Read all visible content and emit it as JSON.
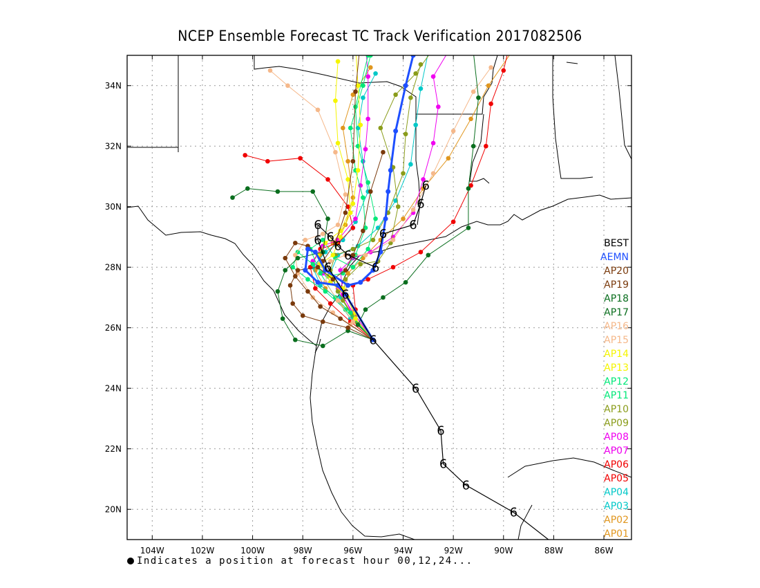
{
  "title": "NCEP Ensemble Forecast TC Track Verification 2017082506",
  "footnote": "Indicates a position at forecast hour 00,12,24...",
  "map": {
    "lon_range": [
      -105,
      -84.9
    ],
    "lat_range": [
      19,
      35
    ]
  },
  "x_ticks": [
    "104W",
    "102W",
    "100W",
    "98W",
    "96W",
    "94W",
    "92W",
    "90W",
    "88W",
    "86W"
  ],
  "y_ticks": [
    "34N",
    "32N",
    "30N",
    "28N",
    "26N",
    "24N",
    "22N",
    "20N"
  ],
  "legend": [
    {
      "label": "BEST",
      "color": "#000000"
    },
    {
      "label": "AEMN",
      "color": "#1e4fff"
    },
    {
      "label": "AP20",
      "color": "#7a3a0c"
    },
    {
      "label": "AP19",
      "color": "#7a3a0c"
    },
    {
      "label": "AP18",
      "color": "#0a6e1e"
    },
    {
      "label": "AP17",
      "color": "#0a6e1e"
    },
    {
      "label": "AP16",
      "color": "#f5b88a"
    },
    {
      "label": "AP15",
      "color": "#f5b88a"
    },
    {
      "label": "AP14",
      "color": "#f5f500"
    },
    {
      "label": "AP13",
      "color": "#f5f500"
    },
    {
      "label": "AP12",
      "color": "#00e878"
    },
    {
      "label": "AP11",
      "color": "#00e878"
    },
    {
      "label": "AP10",
      "color": "#8a9c1a"
    },
    {
      "label": "AP09",
      "color": "#8a9c1a"
    },
    {
      "label": "AP08",
      "color": "#f000f0"
    },
    {
      "label": "AP07",
      "color": "#f000f0"
    },
    {
      "label": "AP06",
      "color": "#f00000"
    },
    {
      "label": "AP05",
      "color": "#f00000"
    },
    {
      "label": "AP04",
      "color": "#00c8c8"
    },
    {
      "label": "AP03",
      "color": "#00c8c8"
    },
    {
      "label": "AP02",
      "color": "#e0961e"
    },
    {
      "label": "AP01",
      "color": "#e0961e"
    }
  ],
  "tracks": [
    {
      "name": "BEST",
      "color": "#000000",
      "points": [
        [
          -87.9,
          18.8
        ],
        [
          -89.6,
          19.9
        ],
        [
          -91.5,
          20.8
        ],
        [
          -92.4,
          21.5
        ],
        [
          -92.5,
          22.6
        ],
        [
          -93.5,
          24.0
        ],
        [
          -95.2,
          25.6
        ],
        [
          -96.3,
          27.1
        ],
        [
          -97.0,
          28.0
        ],
        [
          -97.4,
          28.9
        ],
        [
          -97.4,
          29.4
        ],
        [
          -96.9,
          29.0
        ],
        [
          -96.6,
          28.7
        ],
        [
          -96.2,
          28.4
        ],
        [
          -95.1,
          28.0
        ],
        [
          -94.8,
          29.1
        ],
        [
          -93.6,
          29.4
        ],
        [
          -93.3,
          30.1
        ],
        [
          -93.1,
          30.7
        ]
      ]
    },
    {
      "name": "AEMN",
      "color": "#1e4fff",
      "points": [
        [
          -95.2,
          25.6
        ],
        [
          -96.3,
          27.1
        ],
        [
          -96.6,
          27.4
        ],
        [
          -97.4,
          27.5
        ],
        [
          -97.9,
          27.9
        ],
        [
          -97.8,
          28.6
        ],
        [
          -97.5,
          28.5
        ],
        [
          -97.1,
          27.9
        ],
        [
          -96.2,
          27.4
        ],
        [
          -95.7,
          27.5
        ],
        [
          -95.2,
          27.9
        ],
        [
          -94.9,
          28.5
        ],
        [
          -94.7,
          29.6
        ],
        [
          -94.6,
          30.5
        ],
        [
          -94.5,
          31.2
        ],
        [
          -94.3,
          32.5
        ],
        [
          -93.9,
          34.0
        ],
        [
          -93.6,
          35.0
        ]
      ]
    },
    {
      "name": "AP20",
      "color": "#7a3a0c",
      "points": [
        [
          -95.2,
          25.6
        ],
        [
          -96.5,
          26.3
        ],
        [
          -97.3,
          26.7
        ],
        [
          -97.8,
          27.2
        ],
        [
          -98.3,
          27.7
        ],
        [
          -98.7,
          28.3
        ],
        [
          -98.3,
          28.8
        ],
        [
          -97.8,
          28.7
        ],
        [
          -97.2,
          28.2
        ],
        [
          -96.7,
          28.8
        ],
        [
          -96.3,
          29.8
        ],
        [
          -96.0,
          31.5
        ],
        [
          -95.9,
          33.8
        ],
        [
          -95.7,
          35.5
        ]
      ]
    },
    {
      "name": "AP19",
      "color": "#7a3a0c",
      "points": [
        [
          -95.2,
          25.6
        ],
        [
          -96.2,
          26.0
        ],
        [
          -97.2,
          26.2
        ],
        [
          -98.0,
          26.4
        ],
        [
          -98.4,
          26.8
        ],
        [
          -98.5,
          27.4
        ],
        [
          -98.2,
          27.9
        ],
        [
          -97.4,
          28.0
        ],
        [
          -96.8,
          27.6
        ],
        [
          -96.3,
          27.9
        ],
        [
          -96.0,
          28.4
        ],
        [
          -95.6,
          29.2
        ],
        [
          -95.3,
          30.5
        ],
        [
          -94.8,
          31.8
        ]
      ]
    },
    {
      "name": "AP18",
      "color": "#0a6e1e",
      "points": [
        [
          -95.2,
          25.6
        ],
        [
          -96.2,
          25.9
        ],
        [
          -97.2,
          25.4
        ],
        [
          -98.3,
          25.6
        ],
        [
          -98.8,
          26.3
        ],
        [
          -99.0,
          27.2
        ],
        [
          -98.7,
          27.9
        ],
        [
          -98.2,
          28.3
        ],
        [
          -97.2,
          28.5
        ],
        [
          -97.0,
          29.6
        ],
        [
          -97.6,
          30.5
        ],
        [
          -99.0,
          30.5
        ],
        [
          -100.2,
          30.6
        ],
        [
          -100.8,
          30.3
        ]
      ]
    },
    {
      "name": "AP17",
      "color": "#0a6e1e",
      "points": [
        [
          -95.2,
          25.6
        ],
        [
          -95.8,
          26.1
        ],
        [
          -95.5,
          26.6
        ],
        [
          -94.8,
          27.0
        ],
        [
          -93.9,
          27.5
        ],
        [
          -93.0,
          28.4
        ],
        [
          -91.4,
          29.3
        ],
        [
          -91.4,
          30.6
        ],
        [
          -91.2,
          32.0
        ],
        [
          -91.0,
          33.6
        ],
        [
          -91.2,
          35.1
        ]
      ]
    },
    {
      "name": "AP16",
      "color": "#f5b88a",
      "points": [
        [
          -95.2,
          25.6
        ],
        [
          -96.1,
          26.1
        ],
        [
          -96.8,
          26.5
        ],
        [
          -97.6,
          27.0
        ],
        [
          -98.2,
          27.8
        ],
        [
          -98.3,
          28.4
        ],
        [
          -97.9,
          28.9
        ],
        [
          -97.2,
          29.1
        ],
        [
          -96.6,
          29.4
        ],
        [
          -96.3,
          30.4
        ],
        [
          -96.7,
          31.8
        ],
        [
          -97.4,
          33.2
        ],
        [
          -98.6,
          34.0
        ],
        [
          -99.3,
          34.5
        ]
      ]
    },
    {
      "name": "AP15",
      "color": "#f5b88a",
      "points": [
        [
          -95.2,
          25.6
        ],
        [
          -96.0,
          26.2
        ],
        [
          -96.6,
          26.9
        ],
        [
          -97.1,
          27.5
        ],
        [
          -96.9,
          28.2
        ],
        [
          -96.3,
          28.4
        ],
        [
          -95.5,
          28.4
        ],
        [
          -94.4,
          28.9
        ],
        [
          -93.6,
          29.9
        ],
        [
          -92.8,
          31.1
        ],
        [
          -92.0,
          32.5
        ],
        [
          -91.2,
          33.8
        ],
        [
          -90.5,
          34.6
        ]
      ]
    },
    {
      "name": "AP14",
      "color": "#f5f500",
      "points": [
        [
          -95.2,
          25.6
        ],
        [
          -95.9,
          26.3
        ],
        [
          -96.2,
          27.0
        ],
        [
          -96.9,
          27.5
        ],
        [
          -97.3,
          28.1
        ],
        [
          -96.8,
          28.4
        ],
        [
          -96.5,
          29.0
        ],
        [
          -96.1,
          29.8
        ],
        [
          -96.2,
          30.9
        ],
        [
          -96.6,
          32.1
        ],
        [
          -96.7,
          33.5
        ],
        [
          -96.6,
          34.8
        ]
      ]
    },
    {
      "name": "AP13",
      "color": "#f5f500",
      "points": [
        [
          -95.2,
          25.6
        ],
        [
          -95.9,
          26.5
        ],
        [
          -96.4,
          27.3
        ],
        [
          -96.9,
          27.7
        ],
        [
          -97.4,
          28.4
        ],
        [
          -97.1,
          28.8
        ],
        [
          -96.5,
          29.2
        ],
        [
          -96.0,
          30.1
        ],
        [
          -95.8,
          31.2
        ],
        [
          -95.7,
          32.7
        ],
        [
          -95.8,
          34.0
        ],
        [
          -95.9,
          35.4
        ]
      ]
    },
    {
      "name": "AP12",
      "color": "#00e878",
      "points": [
        [
          -95.2,
          25.6
        ],
        [
          -96.3,
          26.6
        ],
        [
          -97.1,
          27.2
        ],
        [
          -97.8,
          27.6
        ],
        [
          -98.4,
          28.0
        ],
        [
          -98.2,
          28.5
        ],
        [
          -97.6,
          28.1
        ],
        [
          -97.0,
          27.7
        ],
        [
          -96.4,
          27.8
        ],
        [
          -95.9,
          28.4
        ],
        [
          -95.5,
          29.3
        ],
        [
          -95.6,
          30.3
        ],
        [
          -95.9,
          31.2
        ],
        [
          -96.1,
          32.6
        ],
        [
          -95.6,
          34.0
        ],
        [
          -95.3,
          35.0
        ]
      ]
    },
    {
      "name": "AP11",
      "color": "#00e878",
      "points": [
        [
          -95.2,
          25.6
        ],
        [
          -96.1,
          26.5
        ],
        [
          -96.7,
          27.0
        ],
        [
          -97.3,
          27.8
        ],
        [
          -97.7,
          28.6
        ],
        [
          -97.2,
          28.9
        ],
        [
          -96.7,
          28.3
        ],
        [
          -96.0,
          28.0
        ],
        [
          -95.4,
          28.6
        ],
        [
          -95.1,
          29.6
        ],
        [
          -95.4,
          30.8
        ],
        [
          -95.8,
          32.0
        ],
        [
          -95.9,
          33.3
        ],
        [
          -95.4,
          35.0
        ]
      ]
    },
    {
      "name": "AP10",
      "color": "#8a9c1a",
      "points": [
        [
          -95.2,
          25.6
        ],
        [
          -96.0,
          26.4
        ],
        [
          -96.6,
          27.2
        ],
        [
          -96.9,
          27.9
        ],
        [
          -96.7,
          28.4
        ],
        [
          -96.0,
          28.6
        ],
        [
          -95.2,
          28.9
        ],
        [
          -94.6,
          29.8
        ],
        [
          -94.0,
          31.1
        ],
        [
          -93.9,
          32.4
        ],
        [
          -93.7,
          33.6
        ],
        [
          -93.3,
          34.7
        ]
      ]
    },
    {
      "name": "AP09",
      "color": "#8a9c1a",
      "points": [
        [
          -95.2,
          25.6
        ],
        [
          -95.9,
          26.2
        ],
        [
          -96.4,
          26.9
        ],
        [
          -96.3,
          27.6
        ],
        [
          -95.7,
          28.1
        ],
        [
          -95.0,
          28.2
        ],
        [
          -94.5,
          28.8
        ],
        [
          -94.2,
          30.0
        ],
        [
          -94.4,
          31.3
        ],
        [
          -94.9,
          32.6
        ],
        [
          -94.3,
          33.7
        ],
        [
          -93.5,
          34.4
        ],
        [
          -92.9,
          35.1
        ]
      ]
    },
    {
      "name": "AP08",
      "color": "#f000f0",
      "points": [
        [
          -95.2,
          25.6
        ],
        [
          -96.0,
          26.5
        ],
        [
          -96.6,
          27.3
        ],
        [
          -97.2,
          27.8
        ],
        [
          -97.6,
          28.2
        ],
        [
          -97.2,
          28.7
        ],
        [
          -96.6,
          28.9
        ],
        [
          -95.9,
          29.6
        ],
        [
          -95.7,
          30.7
        ],
        [
          -95.5,
          31.9
        ],
        [
          -95.4,
          32.9
        ],
        [
          -95.4,
          34.3
        ],
        [
          -95.5,
          35.4
        ]
      ]
    },
    {
      "name": "AP07",
      "color": "#f000f0",
      "points": [
        [
          -95.2,
          25.6
        ],
        [
          -96.0,
          26.4
        ],
        [
          -96.4,
          27.1
        ],
        [
          -96.5,
          27.9
        ],
        [
          -96.0,
          28.3
        ],
        [
          -95.3,
          28.5
        ],
        [
          -94.4,
          29.0
        ],
        [
          -93.6,
          29.8
        ],
        [
          -93.2,
          30.9
        ],
        [
          -92.8,
          32.1
        ],
        [
          -92.6,
          33.3
        ],
        [
          -92.8,
          34.3
        ],
        [
          -92.0,
          35.4
        ]
      ]
    },
    {
      "name": "AP06",
      "color": "#f00000",
      "points": [
        [
          -95.2,
          25.6
        ],
        [
          -96.1,
          26.2
        ],
        [
          -96.9,
          26.8
        ],
        [
          -97.5,
          27.3
        ],
        [
          -97.7,
          28.0
        ],
        [
          -97.3,
          28.6
        ],
        [
          -96.6,
          28.8
        ],
        [
          -96.0,
          29.3
        ],
        [
          -96.2,
          30.0
        ],
        [
          -97.0,
          30.9
        ],
        [
          -98.1,
          31.6
        ],
        [
          -99.4,
          31.5
        ],
        [
          -100.3,
          31.7
        ]
      ]
    },
    {
      "name": "AP05",
      "color": "#f00000",
      "points": [
        [
          -95.2,
          25.6
        ],
        [
          -95.9,
          26.6
        ],
        [
          -96.0,
          27.4
        ],
        [
          -95.4,
          27.6
        ],
        [
          -94.4,
          28.0
        ],
        [
          -93.3,
          28.5
        ],
        [
          -92.0,
          29.5
        ],
        [
          -91.3,
          30.7
        ],
        [
          -90.7,
          32.0
        ],
        [
          -90.5,
          33.4
        ],
        [
          -90.0,
          34.5
        ],
        [
          -89.8,
          35.2
        ]
      ]
    },
    {
      "name": "AP04",
      "color": "#00c8c8",
      "points": [
        [
          -95.2,
          25.6
        ],
        [
          -96.1,
          26.3
        ],
        [
          -96.7,
          27.0
        ],
        [
          -97.3,
          27.4
        ],
        [
          -97.6,
          28.0
        ],
        [
          -97.1,
          28.5
        ],
        [
          -96.4,
          28.9
        ],
        [
          -95.9,
          29.5
        ],
        [
          -95.4,
          30.5
        ],
        [
          -95.6,
          31.5
        ],
        [
          -95.8,
          32.6
        ],
        [
          -95.6,
          33.6
        ],
        [
          -95.1,
          34.4
        ]
      ]
    },
    {
      "name": "AP03",
      "color": "#00c8c8",
      "points": [
        [
          -95.2,
          25.6
        ],
        [
          -96.0,
          26.4
        ],
        [
          -96.5,
          27.0
        ],
        [
          -96.9,
          27.8
        ],
        [
          -96.6,
          28.4
        ],
        [
          -95.8,
          28.7
        ],
        [
          -95.0,
          29.3
        ],
        [
          -94.3,
          30.2
        ],
        [
          -93.7,
          31.4
        ],
        [
          -93.5,
          32.7
        ],
        [
          -93.3,
          33.9
        ],
        [
          -93.0,
          35.1
        ]
      ]
    },
    {
      "name": "AP02",
      "color": "#e0961e",
      "points": [
        [
          -95.2,
          25.6
        ],
        [
          -96.0,
          26.3
        ],
        [
          -96.6,
          26.9
        ],
        [
          -97.1,
          27.3
        ],
        [
          -97.5,
          27.9
        ],
        [
          -97.3,
          28.4
        ],
        [
          -96.8,
          28.8
        ],
        [
          -96.3,
          29.4
        ],
        [
          -96.0,
          30.3
        ],
        [
          -96.2,
          31.5
        ],
        [
          -96.4,
          32.6
        ],
        [
          -96.0,
          33.7
        ],
        [
          -95.3,
          34.6
        ]
      ]
    },
    {
      "name": "AP01",
      "color": "#e0961e",
      "points": [
        [
          -95.2,
          25.6
        ],
        [
          -95.9,
          26.4
        ],
        [
          -96.3,
          27.1
        ],
        [
          -96.2,
          27.8
        ],
        [
          -95.6,
          28.3
        ],
        [
          -94.9,
          28.9
        ],
        [
          -94.0,
          29.6
        ],
        [
          -93.2,
          30.6
        ],
        [
          -92.2,
          31.6
        ],
        [
          -91.3,
          32.9
        ],
        [
          -90.6,
          34.0
        ],
        [
          -89.6,
          35.2
        ]
      ]
    }
  ]
}
